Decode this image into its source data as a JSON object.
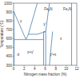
{
  "chart_data": {
    "type": "phase_diagram",
    "x_label": "Nitrogen mass fraction (%)",
    "y_label": "Temperature (°C)",
    "xlim": [
      0,
      12
    ],
    "xticks": [
      0,
      2,
      4,
      6,
      8,
      10,
      12
    ],
    "ylim": [
      300,
      1000
    ],
    "yticks": [
      300,
      400,
      500,
      600,
      700,
      800,
      900,
      1000
    ],
    "color": "#4a7fb0",
    "lines": [
      {
        "x": [
          0,
          0.1,
          0.1
        ],
        "y": [
          910,
          590,
          300
        ]
      },
      {
        "x": [
          0,
          2.35
        ],
        "y": [
          910,
          590
        ]
      },
      {
        "x": [
          0.1,
          5.7
        ],
        "y": [
          590,
          590
        ]
      },
      {
        "x": [
          2.35,
          2.8,
          4.5
        ],
        "y": [
          590,
          650,
          650
        ]
      },
      {
        "x": [
          2.8,
          4.5
        ],
        "y": [
          650,
          1000
        ]
      },
      {
        "x": [
          5.7,
          5.7,
          6.1,
          6.1
        ],
        "y": [
          300,
          680,
          680,
          300
        ]
      },
      {
        "x": [
          4.5,
          6.1,
          6.8
        ],
        "y": [
          650,
          680,
          1000
        ]
      },
      {
        "x": [
          6.8,
          7.4
        ],
        "y": [
          300,
          680
        ]
      },
      {
        "x": [
          11,
          11
        ],
        "y": [
          300,
          1000
        ]
      }
    ],
    "labels": [
      {
        "text": "Fe₄N",
        "x": 6.6,
        "y": 930
      },
      {
        "text": "Fe₂N",
        "x": 10.2,
        "y": 930
      },
      {
        "text": "γ",
        "x": 1.4,
        "y": 800
      },
      {
        "text": "α",
        "x": 0.9,
        "y": 420
      },
      {
        "text": "γ+γ'",
        "x": 3.2,
        "y": 450
      },
      {
        "text": "γ'",
        "x": 5.9,
        "y": 760
      },
      {
        "text": "ε",
        "x": 9,
        "y": 600
      },
      {
        "text": "γ'+ε",
        "x": 7.5,
        "y": 420
      }
    ]
  }
}
